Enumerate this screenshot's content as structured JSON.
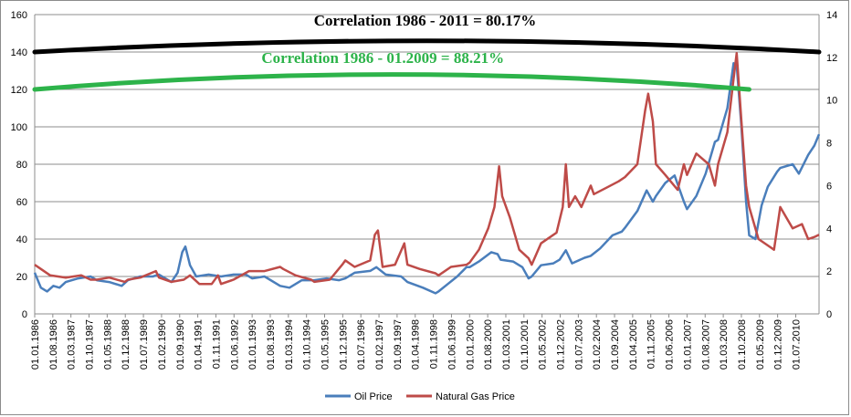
{
  "chart_data": {
    "type": "line",
    "title": "",
    "xlabel": "",
    "ylabel": "",
    "ylim": [
      0,
      160
    ],
    "y2lim": [
      0,
      14
    ],
    "y_ticks": [
      0,
      20,
      40,
      60,
      80,
      100,
      120,
      140,
      160
    ],
    "y2_ticks": [
      0,
      2,
      4,
      6,
      8,
      10,
      12,
      14
    ],
    "grid": "horizontal",
    "legend_position": "bottom",
    "x_tick_labels": [
      "01.01.1986",
      "01.08.1986",
      "01.03.1987",
      "01.10.1987",
      "01.05.1988",
      "01.12.1988",
      "01.07.1989",
      "01.02.1990",
      "01.09.1990",
      "01.04.1991",
      "01.11.1991",
      "01.06.1992",
      "01.01.1993",
      "01.08.1993",
      "01.03.1994",
      "01.10.1994",
      "01.05.1995",
      "01.12.1995",
      "01.07.1996",
      "01.02.1997",
      "01.09.1997",
      "01.04.1998",
      "01.11.1998",
      "01.06.1999",
      "01.01.2000",
      "01.08.2000",
      "01.03.2001",
      "01.10.2001",
      "01.05.2002",
      "01.12.2002",
      "01.07.2003",
      "01.02.2004",
      "01.09.2004",
      "01.04.2005",
      "01.11.2005",
      "01.06.2006",
      "01.01.2007",
      "01.08.2007",
      "01.03.2008",
      "01.10.2008",
      "01.05.2009",
      "01.12.2009",
      "01.07.2010"
    ],
    "x_range": [
      "1986.01",
      "2011.04"
    ],
    "series": [
      {
        "name": "Oil Price",
        "axis": "left",
        "color": "#4a7ebb",
        "points": [
          [
            1986.0,
            22
          ],
          [
            1986.2,
            14
          ],
          [
            1986.4,
            12
          ],
          [
            1986.6,
            15
          ],
          [
            1986.8,
            14
          ],
          [
            1987.0,
            17
          ],
          [
            1987.4,
            19
          ],
          [
            1987.8,
            20
          ],
          [
            1988.0,
            18
          ],
          [
            1988.4,
            17
          ],
          [
            1988.8,
            15
          ],
          [
            1989.0,
            18
          ],
          [
            1989.4,
            20
          ],
          [
            1989.8,
            20
          ],
          [
            1990.0,
            21
          ],
          [
            1990.4,
            17
          ],
          [
            1990.6,
            22
          ],
          [
            1990.75,
            33
          ],
          [
            1990.85,
            36
          ],
          [
            1991.0,
            26
          ],
          [
            1991.2,
            20
          ],
          [
            1991.6,
            21
          ],
          [
            1992.0,
            20
          ],
          [
            1992.4,
            21
          ],
          [
            1992.8,
            21
          ],
          [
            1993.0,
            19
          ],
          [
            1993.4,
            20
          ],
          [
            1993.9,
            15
          ],
          [
            1994.2,
            14
          ],
          [
            1994.6,
            18
          ],
          [
            1995.0,
            18
          ],
          [
            1995.4,
            19
          ],
          [
            1995.8,
            18
          ],
          [
            1996.0,
            19
          ],
          [
            1996.3,
            22
          ],
          [
            1996.8,
            23
          ],
          [
            1997.0,
            25
          ],
          [
            1997.3,
            21
          ],
          [
            1997.8,
            20
          ],
          [
            1998.0,
            17
          ],
          [
            1998.5,
            14
          ],
          [
            1998.9,
            11
          ],
          [
            1999.0,
            12
          ],
          [
            1999.3,
            16
          ],
          [
            1999.6,
            20
          ],
          [
            1999.9,
            25
          ],
          [
            2000.0,
            25
          ],
          [
            2000.3,
            28
          ],
          [
            2000.7,
            33
          ],
          [
            2000.9,
            32
          ],
          [
            2001.0,
            29
          ],
          [
            2001.4,
            28
          ],
          [
            2001.7,
            25
          ],
          [
            2001.9,
            19
          ],
          [
            2002.0,
            20
          ],
          [
            2002.3,
            26
          ],
          [
            2002.7,
            27
          ],
          [
            2002.9,
            29
          ],
          [
            2003.1,
            34
          ],
          [
            2003.3,
            27
          ],
          [
            2003.7,
            30
          ],
          [
            2003.9,
            31
          ],
          [
            2004.2,
            35
          ],
          [
            2004.6,
            42
          ],
          [
            2004.9,
            44
          ],
          [
            2005.0,
            46
          ],
          [
            2005.4,
            55
          ],
          [
            2005.7,
            66
          ],
          [
            2005.9,
            60
          ],
          [
            2006.0,
            63
          ],
          [
            2006.3,
            70
          ],
          [
            2006.6,
            74
          ],
          [
            2006.9,
            60
          ],
          [
            2007.0,
            56
          ],
          [
            2007.3,
            63
          ],
          [
            2007.6,
            75
          ],
          [
            2007.9,
            92
          ],
          [
            2008.0,
            93
          ],
          [
            2008.3,
            110
          ],
          [
            2008.5,
            134
          ],
          [
            2008.6,
            133
          ],
          [
            2008.75,
            100
          ],
          [
            2008.9,
            60
          ],
          [
            2009.0,
            42
          ],
          [
            2009.2,
            40
          ],
          [
            2009.4,
            58
          ],
          [
            2009.6,
            68
          ],
          [
            2009.9,
            76
          ],
          [
            2010.0,
            78
          ],
          [
            2010.4,
            80
          ],
          [
            2010.6,
            75
          ],
          [
            2010.9,
            85
          ],
          [
            2011.1,
            90
          ],
          [
            2011.25,
            96
          ]
        ]
      },
      {
        "name": "Natural Gas Price",
        "axis": "right",
        "color": "#be4b48",
        "points": [
          [
            1986.0,
            2.3
          ],
          [
            1986.2,
            2.1
          ],
          [
            1986.5,
            1.8
          ],
          [
            1987.0,
            1.7
          ],
          [
            1987.5,
            1.8
          ],
          [
            1987.8,
            1.6
          ],
          [
            1988.0,
            1.6
          ],
          [
            1988.4,
            1.7
          ],
          [
            1988.9,
            1.5
          ],
          [
            1989.0,
            1.6
          ],
          [
            1989.4,
            1.7
          ],
          [
            1989.9,
            2.0
          ],
          [
            1990.0,
            1.7
          ],
          [
            1990.4,
            1.5
          ],
          [
            1990.8,
            1.6
          ],
          [
            1991.0,
            1.8
          ],
          [
            1991.3,
            1.4
          ],
          [
            1991.7,
            1.4
          ],
          [
            1991.9,
            1.8
          ],
          [
            1992.0,
            1.4
          ],
          [
            1992.4,
            1.6
          ],
          [
            1992.9,
            2.0
          ],
          [
            1993.0,
            2.0
          ],
          [
            1993.4,
            2.0
          ],
          [
            1993.9,
            2.2
          ],
          [
            1994.0,
            2.1
          ],
          [
            1994.4,
            1.8
          ],
          [
            1994.9,
            1.6
          ],
          [
            1995.0,
            1.5
          ],
          [
            1995.5,
            1.6
          ],
          [
            1995.9,
            2.3
          ],
          [
            1996.0,
            2.5
          ],
          [
            1996.3,
            2.2
          ],
          [
            1996.8,
            2.5
          ],
          [
            1996.95,
            3.7
          ],
          [
            1997.05,
            3.9
          ],
          [
            1997.2,
            2.2
          ],
          [
            1997.6,
            2.3
          ],
          [
            1997.9,
            3.3
          ],
          [
            1998.0,
            2.3
          ],
          [
            1998.4,
            2.1
          ],
          [
            1998.9,
            1.9
          ],
          [
            1999.0,
            1.8
          ],
          [
            1999.4,
            2.2
          ],
          [
            1999.9,
            2.3
          ],
          [
            2000.0,
            2.4
          ],
          [
            2000.3,
            3.0
          ],
          [
            2000.6,
            4.0
          ],
          [
            2000.8,
            5.0
          ],
          [
            2000.95,
            6.9
          ],
          [
            2001.05,
            5.5
          ],
          [
            2001.3,
            4.5
          ],
          [
            2001.6,
            3.0
          ],
          [
            2001.9,
            2.6
          ],
          [
            2002.0,
            2.3
          ],
          [
            2002.3,
            3.3
          ],
          [
            2002.8,
            3.8
          ],
          [
            2003.0,
            5.0
          ],
          [
            2003.1,
            7.0
          ],
          [
            2003.2,
            5.0
          ],
          [
            2003.4,
            5.5
          ],
          [
            2003.6,
            5.0
          ],
          [
            2003.9,
            6.0
          ],
          [
            2004.0,
            5.6
          ],
          [
            2004.4,
            5.9
          ],
          [
            2004.8,
            6.2
          ],
          [
            2005.0,
            6.4
          ],
          [
            2005.4,
            7.0
          ],
          [
            2005.65,
            9.5
          ],
          [
            2005.75,
            10.3
          ],
          [
            2005.9,
            9.0
          ],
          [
            2006.0,
            7.0
          ],
          [
            2006.3,
            6.5
          ],
          [
            2006.7,
            5.8
          ],
          [
            2006.9,
            7.0
          ],
          [
            2007.0,
            6.5
          ],
          [
            2007.3,
            7.5
          ],
          [
            2007.7,
            7.0
          ],
          [
            2007.9,
            6.0
          ],
          [
            2008.0,
            7.0
          ],
          [
            2008.3,
            8.5
          ],
          [
            2008.5,
            11.0
          ],
          [
            2008.6,
            12.2
          ],
          [
            2008.75,
            9.0
          ],
          [
            2008.9,
            6.0
          ],
          [
            2009.0,
            5.0
          ],
          [
            2009.3,
            3.5
          ],
          [
            2009.6,
            3.2
          ],
          [
            2009.8,
            3.0
          ],
          [
            2010.0,
            5.0
          ],
          [
            2010.2,
            4.5
          ],
          [
            2010.4,
            4.0
          ],
          [
            2010.7,
            4.2
          ],
          [
            2010.9,
            3.5
          ],
          [
            2011.1,
            3.6
          ],
          [
            2011.25,
            3.7
          ]
        ]
      }
    ],
    "correlation_curves": [
      {
        "label": "Correlation 1986 - 2011 = 80.17%",
        "color": "#000000",
        "label_color": "#000000",
        "x_start": "1986.01",
        "x_end": "2011.04",
        "y_end": 140,
        "y_peak": 146
      },
      {
        "label": "Correlation 1986 - 01.2009 = 88.21%",
        "color": "#2db34a",
        "label_color": "#2db34a",
        "x_start": "1986.01",
        "x_end": "2009.01",
        "y_end": 120,
        "y_peak": 128
      }
    ]
  }
}
